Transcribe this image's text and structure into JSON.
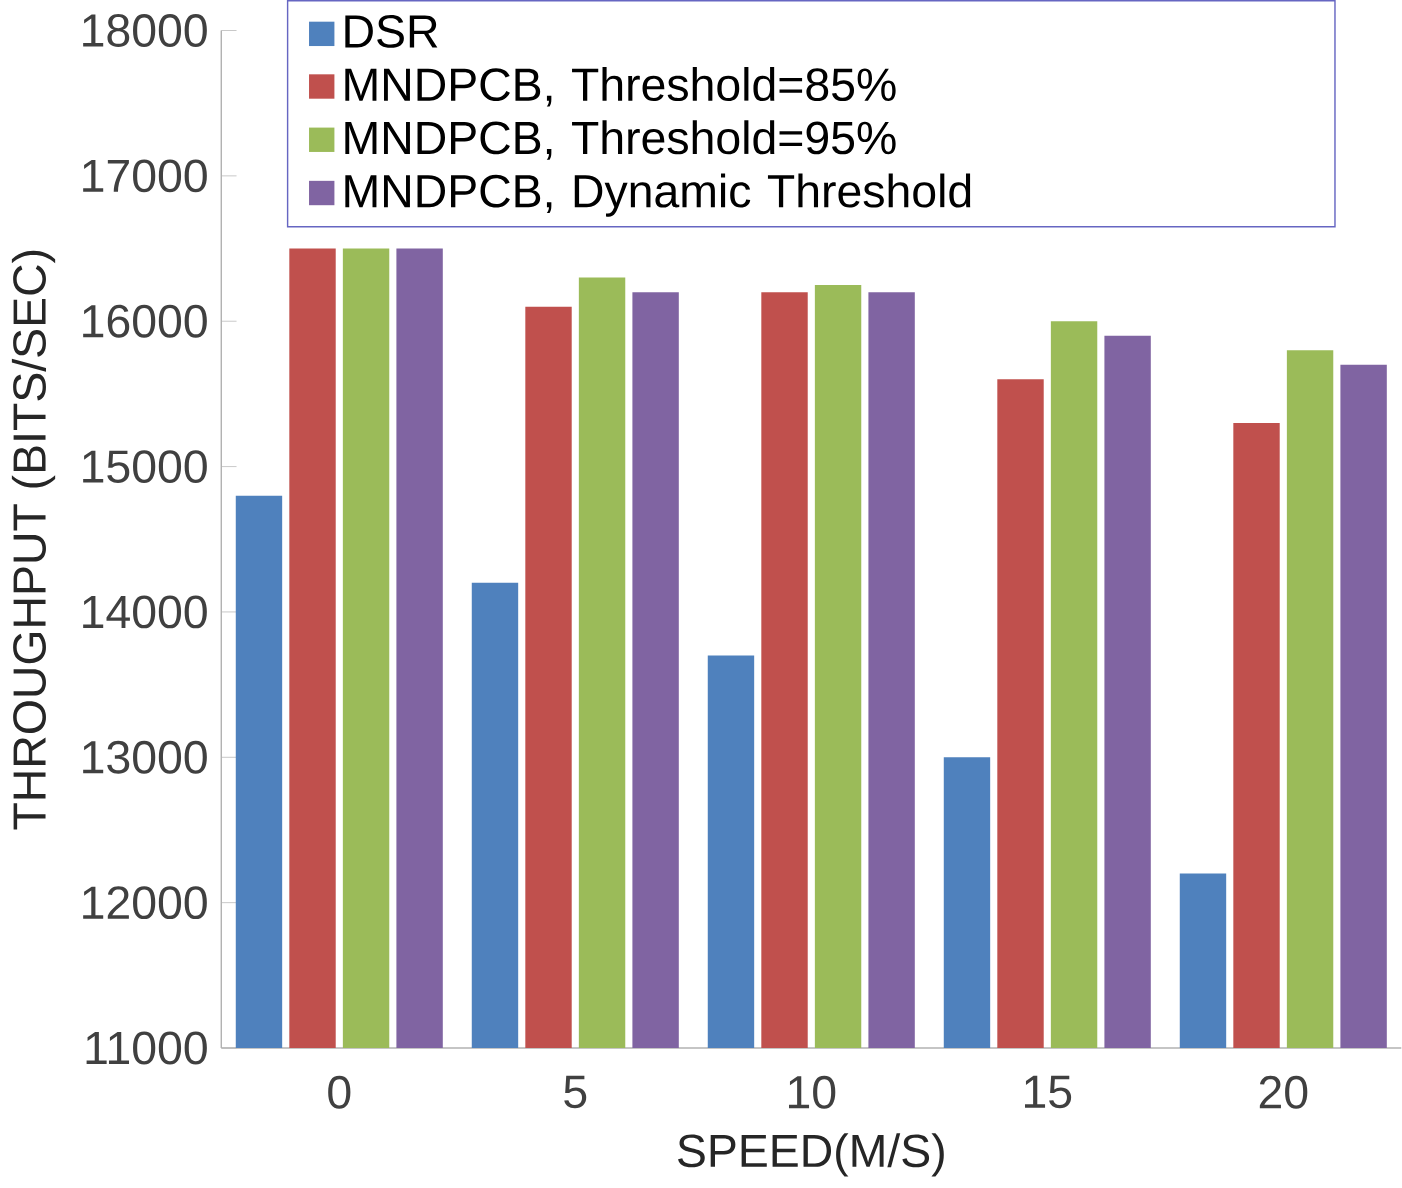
{
  "chart_data": {
    "type": "bar",
    "xlabel": "SPEED(M/S)",
    "ylabel": "THROUGHPUT (BITS/SEC)",
    "categories": [
      "0",
      "5",
      "10",
      "15",
      "20"
    ],
    "series": [
      {
        "name": "DSR",
        "color": "#4f81bd",
        "values": [
          14800,
          14200,
          13700,
          13000,
          12200
        ]
      },
      {
        "name": "MNDPCB, Threshold=85%",
        "color": "#c0504d",
        "values": [
          16500,
          16100,
          16200,
          15600,
          15300
        ]
      },
      {
        "name": "MNDPCB, Threshold=95%",
        "color": "#9bbb59",
        "values": [
          16500,
          16300,
          16250,
          16000,
          15800
        ]
      },
      {
        "name": "MNDPCB, Dynamic Threshold",
        "color": "#8064a2",
        "values": [
          16500,
          16200,
          16200,
          15900,
          15700
        ]
      }
    ],
    "ylim": [
      11000,
      18000
    ],
    "yticks": [
      11000,
      12000,
      13000,
      14000,
      15000,
      16000,
      17000,
      18000
    ],
    "legend": "top",
    "grid": false
  }
}
